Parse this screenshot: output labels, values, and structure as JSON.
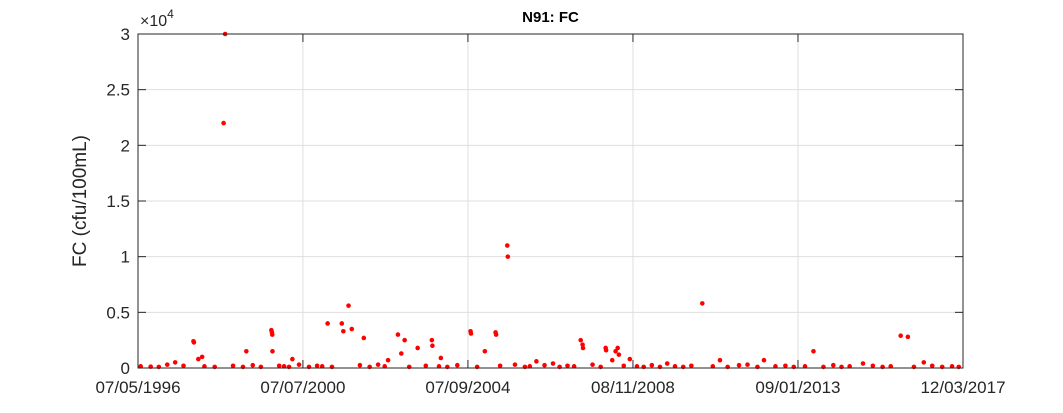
{
  "chart_data": {
    "type": "scatter",
    "title": "N91: FC",
    "ylabel": "FC (cfu/100mL)",
    "xlabel": "",
    "x_axis": "date",
    "xlim": [
      "1996-05-07",
      "2017-03-12"
    ],
    "xticks": [
      "1996-05-07",
      "2000-07-07",
      "2004-09-07",
      "2008-11-08",
      "2013-01-09",
      "2017-03-12"
    ],
    "xtick_labels": [
      "07/05/1996",
      "07/07/2000",
      "07/09/2004",
      "08/11/2008",
      "09/01/2013",
      "12/03/2017"
    ],
    "ylim": [
      0,
      30000
    ],
    "yticks": [
      0,
      5000,
      10000,
      15000,
      20000,
      25000,
      30000
    ],
    "ytick_labels": [
      "0",
      "0.5",
      "1",
      "1.5",
      "2",
      "2.5",
      "3"
    ],
    "y_multiplier_base": "×10",
    "y_multiplier_exp": "4",
    "grid": true,
    "marker_color": "#ff0000",
    "series": [
      {
        "points": [
          [
            "1998-07-20",
            30000
          ],
          [
            "1998-07-06",
            22000
          ],
          [
            "2005-09-05",
            11000
          ],
          [
            "2005-09-10",
            10000
          ],
          [
            "2010-08-10",
            5800
          ],
          [
            "2001-09-01",
            5600
          ],
          [
            "2001-07-01",
            4000
          ],
          [
            "2001-07-15",
            3300
          ],
          [
            "2001-10-01",
            3500
          ],
          [
            "2001-02-20",
            4000
          ],
          [
            "1999-09-20",
            3400
          ],
          [
            "1999-09-25",
            3200
          ],
          [
            "1999-09-28",
            3000
          ],
          [
            "1999-09-30",
            1500
          ],
          [
            "1997-10-01",
            2400
          ],
          [
            "1997-10-05",
            2300
          ],
          [
            "1997-11-15",
            800
          ],
          [
            "1997-12-20",
            1000
          ],
          [
            "2002-01-20",
            2700
          ],
          [
            "2002-12-01",
            3000
          ],
          [
            "2003-02-01",
            2500
          ],
          [
            "2003-01-01",
            1300
          ],
          [
            "2003-06-01",
            1800
          ],
          [
            "2003-10-10",
            2500
          ],
          [
            "2003-10-15",
            2000
          ],
          [
            "2004-10-01",
            3300
          ],
          [
            "2004-10-05",
            3100
          ],
          [
            "2005-05-20",
            3200
          ],
          [
            "2005-05-25",
            3000
          ],
          [
            "2005-02-10",
            1500
          ],
          [
            "2007-07-15",
            2500
          ],
          [
            "2007-08-01",
            2100
          ],
          [
            "2007-08-05",
            1800
          ],
          [
            "2008-03-01",
            1800
          ],
          [
            "2008-03-05",
            1600
          ],
          [
            "2008-06-01",
            1500
          ],
          [
            "2008-06-20",
            1800
          ],
          [
            "2008-07-01",
            1200
          ],
          [
            "2008-10-10",
            800
          ],
          [
            "2008-05-01",
            700
          ],
          [
            "1999-02-01",
            1500
          ],
          [
            "2000-04-01",
            800
          ],
          [
            "2002-09-01",
            700
          ],
          [
            "2004-01-01",
            900
          ],
          [
            "2009-09-20",
            400
          ],
          [
            "2011-01-20",
            700
          ],
          [
            "2013-06-01",
            1500
          ],
          [
            "2012-03-01",
            700
          ],
          [
            "2015-08-15",
            2900
          ],
          [
            "2015-10-20",
            2800
          ],
          [
            "2016-03-15",
            500
          ],
          [
            "2014-09-01",
            400
          ],
          [
            "2011-10-01",
            300
          ],
          [
            "2006-06-01",
            600
          ],
          [
            "2006-11-01",
            400
          ],
          [
            "1996-06-01",
            150
          ],
          [
            "1996-09-01",
            120
          ],
          [
            "1996-11-15",
            100
          ],
          [
            "1997-02-01",
            300
          ],
          [
            "1997-04-15",
            500
          ],
          [
            "1997-07-01",
            200
          ],
          [
            "1998-01-10",
            150
          ],
          [
            "1998-04-15",
            100
          ],
          [
            "1998-10-01",
            200
          ],
          [
            "1999-01-01",
            100
          ],
          [
            "1999-04-01",
            250
          ],
          [
            "1999-06-15",
            100
          ],
          [
            "1999-12-01",
            200
          ],
          [
            "2000-01-15",
            150
          ],
          [
            "2000-03-01",
            100
          ],
          [
            "2000-06-01",
            300
          ],
          [
            "2000-09-01",
            100
          ],
          [
            "2000-11-15",
            200
          ],
          [
            "2001-01-01",
            150
          ],
          [
            "2001-04-01",
            100
          ],
          [
            "2001-12-15",
            250
          ],
          [
            "2002-03-15",
            100
          ],
          [
            "2002-06-01",
            300
          ],
          [
            "2002-08-01",
            150
          ],
          [
            "2003-03-15",
            100
          ],
          [
            "2003-08-15",
            200
          ],
          [
            "2003-12-15",
            150
          ],
          [
            "2004-03-01",
            100
          ],
          [
            "2004-06-01",
            250
          ],
          [
            "2004-12-01",
            100
          ],
          [
            "2005-07-01",
            200
          ],
          [
            "2005-11-15",
            300
          ],
          [
            "2006-02-15",
            100
          ],
          [
            "2006-04-01",
            150
          ],
          [
            "2006-08-15",
            250
          ],
          [
            "2007-01-01",
            100
          ],
          [
            "2007-03-15",
            200
          ],
          [
            "2007-05-15",
            150
          ],
          [
            "2007-11-01",
            300
          ],
          [
            "2008-01-15",
            100
          ],
          [
            "2008-08-15",
            200
          ],
          [
            "2008-12-15",
            150
          ],
          [
            "2009-02-15",
            100
          ],
          [
            "2009-05-01",
            250
          ],
          [
            "2009-07-15",
            100
          ],
          [
            "2009-12-01",
            150
          ],
          [
            "2010-02-15",
            100
          ],
          [
            "2010-05-01",
            200
          ],
          [
            "2010-11-15",
            150
          ],
          [
            "2011-04-01",
            100
          ],
          [
            "2011-07-15",
            250
          ],
          [
            "2012-01-01",
            100
          ],
          [
            "2012-06-15",
            150
          ],
          [
            "2012-09-15",
            200
          ],
          [
            "2012-12-01",
            100
          ],
          [
            "2013-03-15",
            150
          ],
          [
            "2013-09-01",
            100
          ],
          [
            "2013-12-01",
            250
          ],
          [
            "2014-02-15",
            100
          ],
          [
            "2014-05-01",
            150
          ],
          [
            "2014-12-01",
            200
          ],
          [
            "2015-03-01",
            100
          ],
          [
            "2015-05-15",
            150
          ],
          [
            "2015-12-15",
            100
          ],
          [
            "2016-06-01",
            200
          ],
          [
            "2016-09-01",
            100
          ],
          [
            "2016-12-01",
            150
          ],
          [
            "2017-02-01",
            100
          ]
        ]
      }
    ]
  }
}
